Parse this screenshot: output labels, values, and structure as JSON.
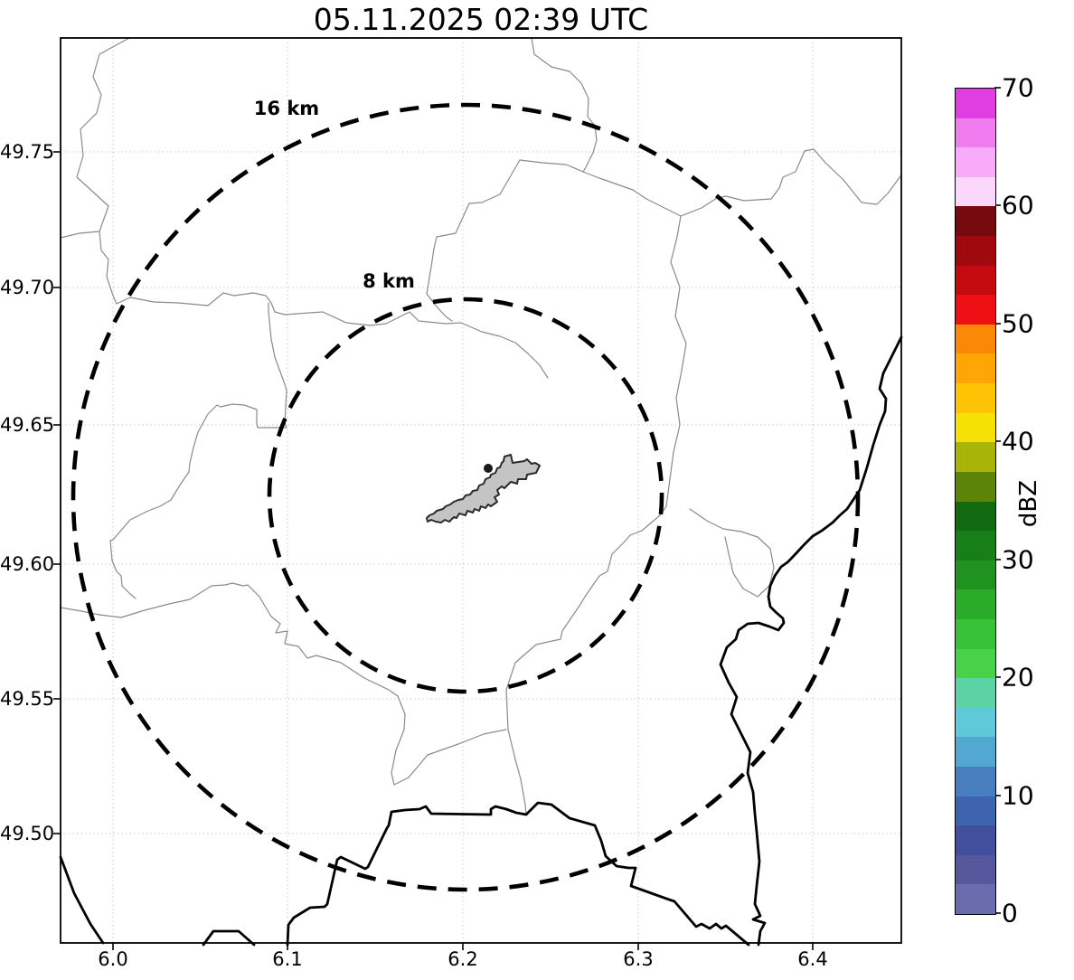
{
  "title": "05.11.2025 02:39 UTC",
  "axes": {
    "x_ticks": [
      "6.0",
      "6.1",
      "6.2",
      "6.3",
      "6.4"
    ],
    "y_ticks": [
      "49.75",
      "49.70",
      "49.65",
      "49.60",
      "49.55",
      "49.50"
    ]
  },
  "range_rings": {
    "outer_label": "16 km",
    "inner_label": "8 km"
  },
  "colorbar": {
    "label": "dBZ",
    "ticks": [
      "0",
      "10",
      "20",
      "30",
      "40",
      "50",
      "60",
      "70"
    ],
    "colors": [
      "#6a6dad",
      "#56589d",
      "#424f9c",
      "#3e64b0",
      "#477fbe",
      "#52a8d1",
      "#5fc9d9",
      "#5bd3a4",
      "#49d249",
      "#38c238",
      "#2aab2a",
      "#1f921f",
      "#187e18",
      "#106a10",
      "#5c8406",
      "#a9b408",
      "#f5e204",
      "#fec305",
      "#fda606",
      "#fb8807",
      "#ef1015",
      "#c60b10",
      "#a00a0e",
      "#770a0e",
      "#fbd7fb",
      "#f8abf8",
      "#f07df0",
      "#e03ee0"
    ]
  },
  "map": {
    "background": "#ffffff",
    "boundary_color": "#8a8a8a",
    "border_color": "#000000",
    "airport_fill": "#c4c4c4",
    "grid_color": "#c9c9c9"
  }
}
